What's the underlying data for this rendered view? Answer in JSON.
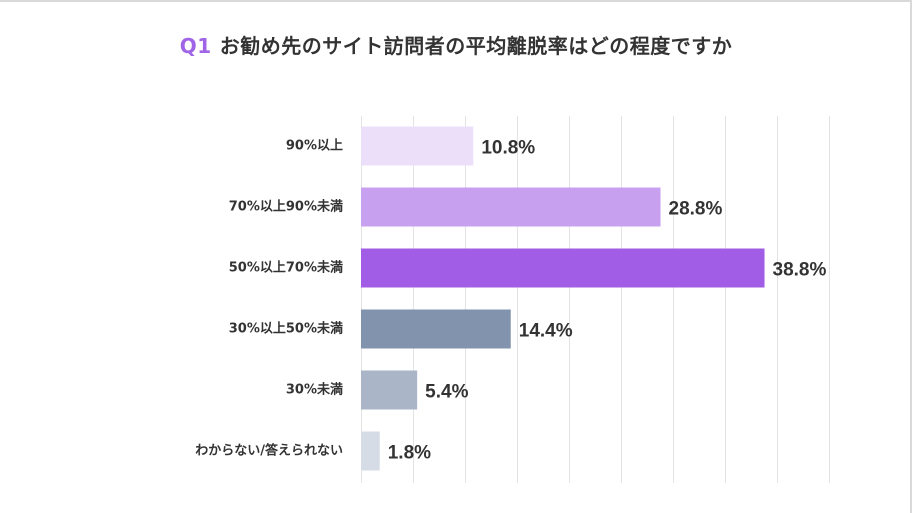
{
  "title": {
    "prefix": "Q1",
    "text": "お勧め先のサイト訪問者の平均離脱率はどの程度ですか"
  },
  "chart_data": {
    "type": "bar",
    "orientation": "horizontal",
    "title": "Q1 お勧め先のサイト訪問者の平均離脱率はどの程度ですか",
    "categories": [
      "90%以上",
      "70%以上90%未満",
      "50%以上70%未満",
      "30%以上50%未満",
      "30%未満",
      "わからない/答えられない"
    ],
    "values": [
      10.8,
      28.8,
      38.8,
      14.4,
      5.4,
      1.8
    ],
    "value_labels": [
      "10.8%",
      "28.8%",
      "38.8%",
      "14.4%",
      "5.4%",
      "1.8%"
    ],
    "bar_colors": [
      "#ecdffa",
      "#c8a0f0",
      "#a15de6",
      "#8294ad",
      "#aab5c8",
      "#d5dce6"
    ],
    "xlim": [
      0,
      45
    ],
    "grid": true,
    "xlabel": "",
    "ylabel": ""
  }
}
